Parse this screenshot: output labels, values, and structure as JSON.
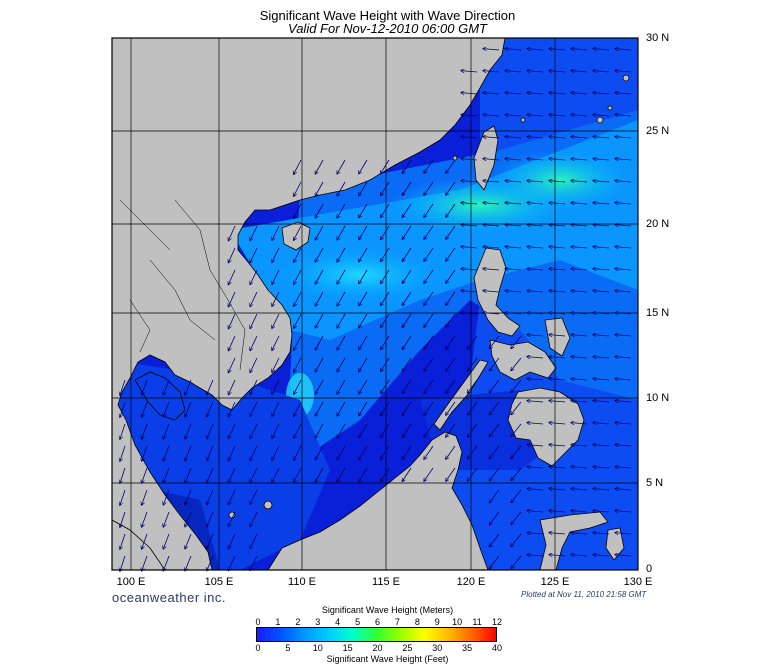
{
  "title": "Significant Wave Height with Wave Direction",
  "subtitle": "Valid For Nov-12-2010 06:00 GMT",
  "longitude_labels": [
    "100 E",
    "105 E",
    "110 E",
    "115 E",
    "120 E",
    "125 E",
    "130 E"
  ],
  "latitude_labels": [
    "30 N",
    "25 N",
    "20 N",
    "15 N",
    "10 N",
    "5 N",
    "0"
  ],
  "brand": "oceanweather inc.",
  "plotted": "Plotted at Nov 11, 2010 21:58 GMT",
  "colorbar": {
    "meters_title": "Significant Wave Height (Meters)",
    "feet_title": "Significant Wave Height (Feet)",
    "meter_ticks": [
      "0",
      "1",
      "2",
      "3",
      "4",
      "5",
      "6",
      "7",
      "8",
      "9",
      "10",
      "11",
      "12"
    ],
    "feet_ticks": [
      "0",
      "5",
      "10",
      "15",
      "20",
      "25",
      "30",
      "35",
      "40"
    ],
    "colors": [
      "#1a1aff",
      "#0055ff",
      "#0099ff",
      "#00ccff",
      "#00ffcc",
      "#33ff33",
      "#99ff00",
      "#ffff00",
      "#ffbb00",
      "#ff6600",
      "#ff0000"
    ]
  },
  "colors": {
    "land": "#c0c0c0",
    "deep_wave": "#0022dd",
    "mid_wave": "#0099ff",
    "high_wave": "#22ffaa"
  }
}
